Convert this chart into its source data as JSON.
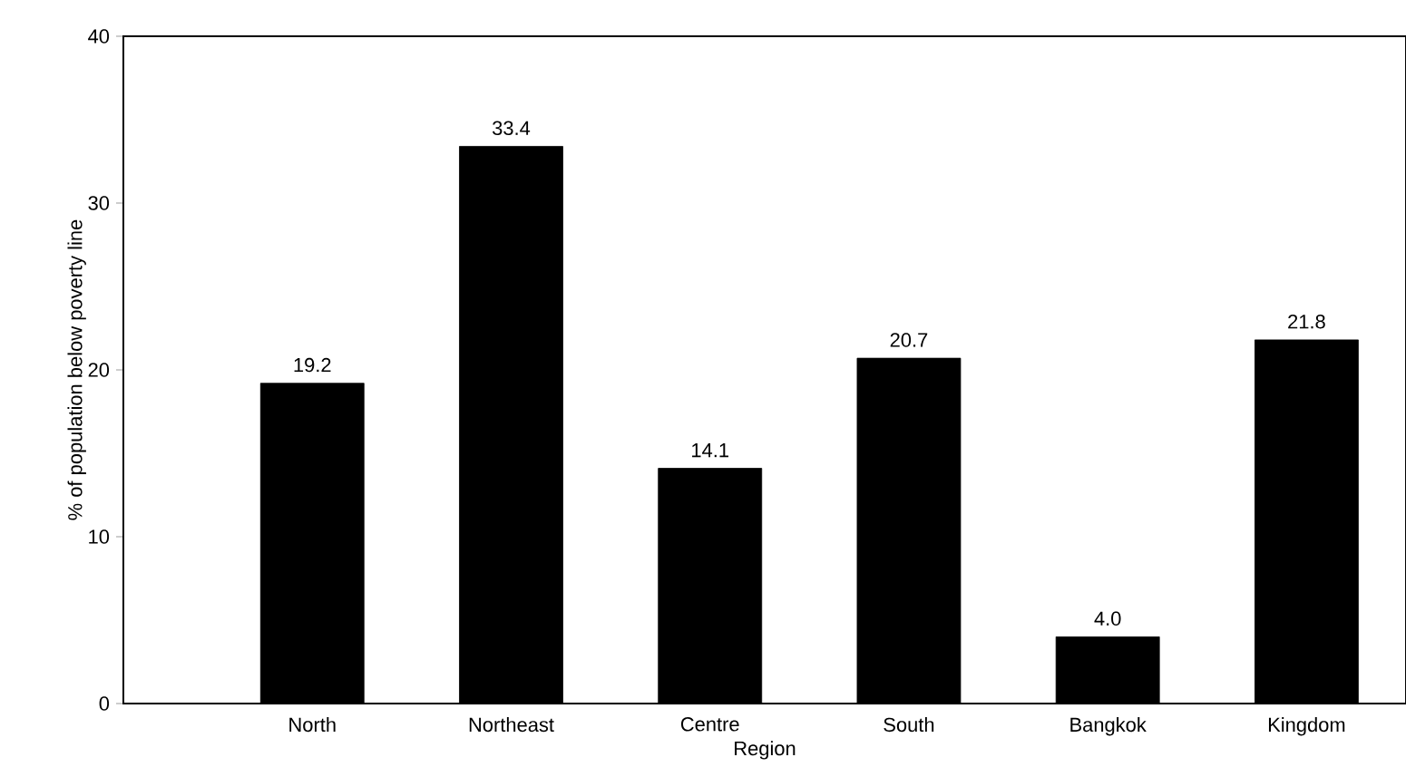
{
  "chart_data": {
    "type": "bar",
    "xlabel": "Region",
    "ylabel": "% of population below poverty line",
    "categories": [
      "North",
      "Northeast",
      "Centre",
      "South",
      "Bangkok",
      "Kingdom"
    ],
    "values": [
      19.2,
      33.4,
      14.1,
      20.7,
      4.0,
      21.8
    ],
    "value_labels": [
      "19.2",
      "33.4",
      "14.1",
      "20.7",
      "4.0",
      "21.8"
    ],
    "color": "#000000",
    "ylim": [
      0,
      40
    ],
    "yticks": [
      0,
      10,
      20,
      30,
      40
    ],
    "grid": false
  }
}
